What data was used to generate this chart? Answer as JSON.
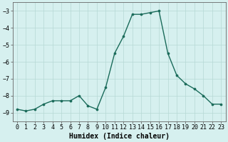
{
  "x": [
    0,
    1,
    2,
    3,
    4,
    5,
    6,
    7,
    8,
    9,
    10,
    11,
    12,
    13,
    14,
    15,
    16,
    17,
    18,
    19,
    20,
    21,
    22,
    23
  ],
  "y": [
    -8.8,
    -8.9,
    -8.8,
    -8.5,
    -8.3,
    -8.3,
    -8.3,
    -8.0,
    -8.6,
    -8.8,
    -7.5,
    -5.5,
    -4.5,
    -3.2,
    -3.2,
    -3.1,
    -3.0,
    -5.5,
    -6.8,
    -7.3,
    -7.6,
    -8.0,
    -8.5,
    -8.5
  ],
  "line_color": "#1a6b5a",
  "marker": "o",
  "markersize": 2.2,
  "linewidth": 1.0,
  "background_color": "#d6f0ef",
  "grid_color": "#b5d8d5",
  "xlabel": "Humidex (Indice chaleur)",
  "xlabel_fontsize": 7,
  "xlim": [
    -0.5,
    23.5
  ],
  "ylim": [
    -9.5,
    -2.5
  ],
  "yticks": [
    -9,
    -8,
    -7,
    -6,
    -5,
    -4,
    -3
  ],
  "xtick_labels": [
    "0",
    "1",
    "2",
    "3",
    "4",
    "5",
    "6",
    "7",
    "8",
    "9",
    "10",
    "11",
    "12",
    "13",
    "14",
    "15",
    "16",
    "17",
    "18",
    "19",
    "20",
    "21",
    "22",
    "23"
  ],
  "tick_fontsize": 6.0,
  "spine_color": "#666666"
}
